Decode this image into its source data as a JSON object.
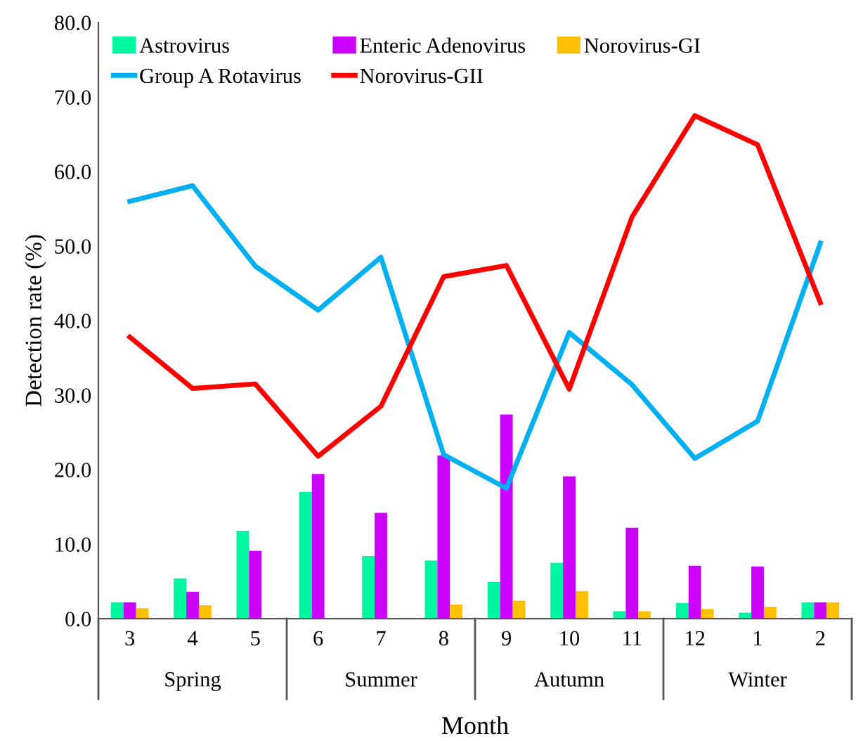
{
  "chart_data": {
    "type": "bar",
    "xlabel": "Month",
    "ylabel": "Detection rate (%)",
    "categories": [
      "3",
      "4",
      "5",
      "6",
      "7",
      "8",
      "9",
      "10",
      "11",
      "12",
      "1",
      "2"
    ],
    "series": [
      {
        "name": "Astrovirus",
        "color": "#00f5a0",
        "values": [
          2.2,
          5.4,
          11.8,
          17.0,
          8.4,
          7.8,
          4.9,
          7.5,
          1.0,
          2.1,
          0.8,
          2.2
        ]
      },
      {
        "name": "Enteric Adenovirus",
        "color": "#cc00ff",
        "values": [
          2.2,
          3.6,
          9.1,
          19.4,
          14.2,
          21.9,
          27.4,
          19.1,
          12.2,
          7.1,
          7.0,
          2.2
        ]
      },
      {
        "name": "Norovirus-GI",
        "color": "#ffc000",
        "values": [
          1.4,
          1.8,
          0,
          0,
          0,
          1.9,
          2.4,
          3.7,
          1.0,
          1.3,
          1.6,
          2.2
        ]
      },
      {
        "name": "Group A Rotavirus",
        "type": "line",
        "color": "#00b0f0",
        "values": [
          56.0,
          58.1,
          47.3,
          41.4,
          48.5,
          22.0,
          17.5,
          38.4,
          31.4,
          21.5,
          26.5,
          50.4
        ]
      },
      {
        "name": "Norovirus-GII",
        "type": "line",
        "color": "#ff0000",
        "values": [
          37.8,
          30.9,
          31.5,
          21.8,
          28.5,
          45.9,
          47.4,
          30.8,
          53.9,
          67.5,
          63.6,
          42.4
        ]
      }
    ],
    "annotations": [
      "Spring",
      "Summer",
      "Autumn",
      "Winter"
    ],
    "ylim": [
      0,
      80
    ],
    "yticks": [
      {
        "value": 0,
        "label": "0.0"
      },
      {
        "value": 10,
        "label": "10.0"
      },
      {
        "value": 20,
        "label": "20.0"
      },
      {
        "value": 30,
        "label": "30.0"
      },
      {
        "value": 40,
        "label": "40.0"
      },
      {
        "value": 50,
        "label": "50.0"
      },
      {
        "value": 60,
        "label": "60.0"
      },
      {
        "value": 70,
        "label": "70.0"
      },
      {
        "value": 80,
        "label": "80.0"
      }
    ],
    "grid": false,
    "legend": "top left",
    "marker": "none",
    "line_style": "solid"
  }
}
